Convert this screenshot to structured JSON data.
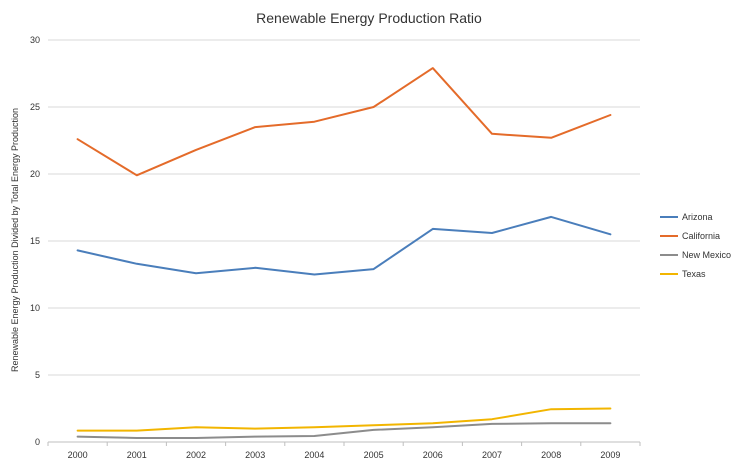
{
  "chart_data": {
    "type": "line",
    "title": "Renewable Energy Production Ratio",
    "ylabel": "Renewable Energy Production Divided by Total Energy Production",
    "xlabel": "",
    "ylim": [
      0,
      30
    ],
    "yticks": [
      0,
      5,
      10,
      15,
      20,
      25,
      30
    ],
    "categories": [
      "2000",
      "2001",
      "2002",
      "2003",
      "2004",
      "2005",
      "2006",
      "2007",
      "2008",
      "2009"
    ],
    "grid": "horizontal",
    "legend_position": "right",
    "series": [
      {
        "name": "Arizona",
        "color": "#4a7ebb",
        "values": [
          14.3,
          13.3,
          12.6,
          13.0,
          12.5,
          12.9,
          15.9,
          15.6,
          16.8,
          15.5
        ]
      },
      {
        "name": "California",
        "color": "#e46b2a",
        "values": [
          22.6,
          19.9,
          21.8,
          23.5,
          23.9,
          25.0,
          27.9,
          23.0,
          22.7,
          24.4
        ]
      },
      {
        "name": "New Mexico",
        "color": "#8c8c8c",
        "values": [
          0.4,
          0.3,
          0.3,
          0.4,
          0.45,
          0.9,
          1.1,
          1.35,
          1.4,
          1.4
        ]
      },
      {
        "name": "Texas",
        "color": "#f2b500",
        "values": [
          0.85,
          0.85,
          1.1,
          1.0,
          1.1,
          1.25,
          1.4,
          1.7,
          2.45,
          2.5
        ]
      }
    ]
  }
}
